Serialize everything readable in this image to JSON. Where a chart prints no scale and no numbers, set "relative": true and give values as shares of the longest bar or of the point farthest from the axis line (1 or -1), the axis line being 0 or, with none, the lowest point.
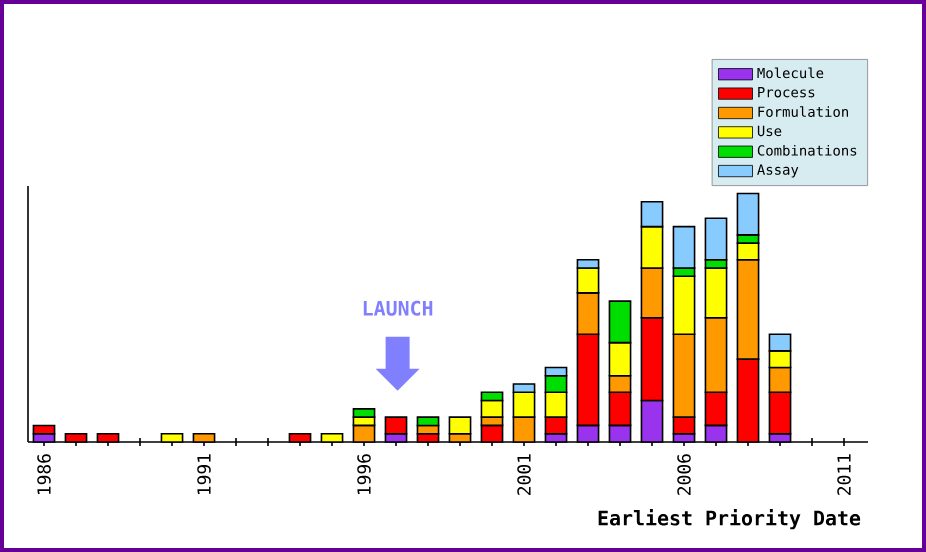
{
  "chart_data": {
    "type": "bar",
    "stacked": true,
    "relative": true,
    "xlabel": "Earliest Priority Date",
    "x": [
      1986,
      1987,
      1988,
      1990,
      1991,
      1994,
      1995,
      1996,
      1997,
      1998,
      1999,
      2000,
      2001,
      2002,
      2003,
      2004,
      2005,
      2006,
      2007,
      2008,
      2009
    ],
    "xlim": [
      1985.5,
      2011.75
    ],
    "xticks": [
      1986,
      1991,
      1996,
      2001,
      2006,
      2011
    ],
    "legend": "top right",
    "annotations": [
      "LAUNCH"
    ],
    "series": [
      {
        "name": "Molecule",
        "color": "#9933ee",
        "values": [
          0.0333,
          0,
          0,
          0,
          0,
          0,
          0,
          0,
          0.0333,
          0,
          0,
          0,
          0,
          0.0333,
          0.0667,
          0.0667,
          0.1667,
          0.0333,
          0.0667,
          0,
          0.0333
        ]
      },
      {
        "name": "Process",
        "color": "#ff0000",
        "values": [
          0.0333,
          0.0333,
          0.0333,
          0,
          0,
          0.0333,
          0,
          0,
          0.0667,
          0.0333,
          0,
          0.0667,
          0,
          0.0667,
          0.3667,
          0.1333,
          0.3333,
          0.0667,
          0.1333,
          0.3333,
          0.1667
        ]
      },
      {
        "name": "Formulation",
        "color": "#ff9900",
        "values": [
          0,
          0,
          0,
          0,
          0.0333,
          0,
          0,
          0.0667,
          0,
          0.0333,
          0.0333,
          0.0333,
          0.1,
          0,
          0.1667,
          0.0667,
          0.2,
          0.3333,
          0.3,
          0.4,
          0.1
        ]
      },
      {
        "name": "Use",
        "color": "#ffff00",
        "values": [
          0,
          0,
          0,
          0.0333,
          0,
          0,
          0.0333,
          0.0333,
          0,
          0,
          0.0667,
          0.0667,
          0.1,
          0.1,
          0.1,
          0.1333,
          0.1667,
          0.2333,
          0.2,
          0.0667,
          0.0667
        ]
      },
      {
        "name": "Combinations",
        "color": "#00dd00",
        "values": [
          0,
          0,
          0,
          0,
          0,
          0,
          0,
          0.0333,
          0,
          0.0333,
          0,
          0.0333,
          0,
          0.0667,
          0,
          0.1667,
          0,
          0.0333,
          0.0333,
          0.0333,
          0
        ]
      },
      {
        "name": "Assay",
        "color": "#88ccff",
        "values": [
          0,
          0,
          0,
          0,
          0,
          0,
          0,
          0,
          0,
          0,
          0,
          0,
          0.0333,
          0.0333,
          0.0333,
          0,
          0.1,
          0.1667,
          0.1667,
          0.1667,
          0.0667
        ]
      }
    ]
  }
}
